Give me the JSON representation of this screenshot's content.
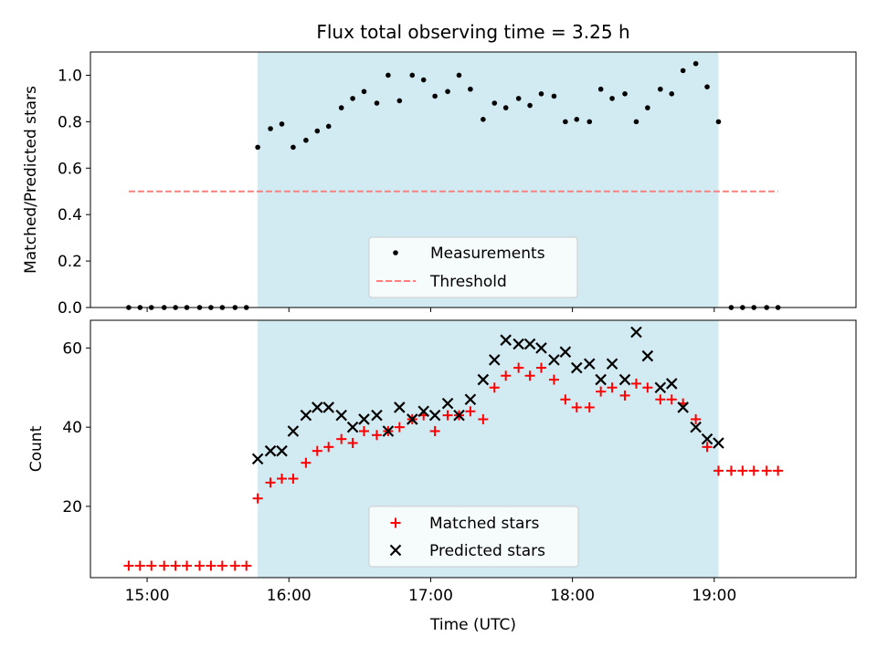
{
  "chart_data": [
    {
      "type": "scatter",
      "title": "Flux total observing time = 3.25 h",
      "xlabel": "",
      "ylabel": "Matched/Predicted stars",
      "ylim": [
        0,
        1.1
      ],
      "yticks": [
        "0.0",
        "0.2",
        "0.4",
        "0.6",
        "0.8",
        "1.0"
      ],
      "ytick_values": [
        0,
        0.2,
        0.4,
        0.6,
        0.8,
        1.0
      ],
      "x_unit": "hours UTC",
      "xlim": [
        14.6,
        20.0
      ],
      "highlight_span": [
        15.78,
        19.03
      ],
      "highlight_color": "#add8e6",
      "legend_position": "lower center",
      "series": [
        {
          "name": "Measurements",
          "kind": "points",
          "color": "#000000",
          "x": [
            14.87,
            14.95,
            15.03,
            15.12,
            15.2,
            15.28,
            15.37,
            15.45,
            15.53,
            15.62,
            15.7,
            15.78,
            15.87,
            15.95,
            16.03,
            16.12,
            16.2,
            16.28,
            16.37,
            16.45,
            16.53,
            16.62,
            16.7,
            16.78,
            16.87,
            16.95,
            17.03,
            17.12,
            17.2,
            17.28,
            17.37,
            17.45,
            17.53,
            17.62,
            17.7,
            17.78,
            17.87,
            17.95,
            18.03,
            18.12,
            18.2,
            18.28,
            18.37,
            18.45,
            18.53,
            18.62,
            18.7,
            18.78,
            18.87,
            18.95,
            19.03,
            19.12,
            19.2,
            19.28,
            19.37,
            19.45
          ],
          "y": [
            0,
            0,
            0,
            0,
            0,
            0,
            0,
            0,
            0,
            0,
            0,
            0.69,
            0.77,
            0.79,
            0.69,
            0.72,
            0.76,
            0.78,
            0.86,
            0.9,
            0.93,
            0.88,
            1.0,
            0.89,
            1.0,
            0.98,
            0.91,
            0.93,
            1.0,
            0.94,
            0.81,
            0.88,
            0.86,
            0.9,
            0.87,
            0.92,
            0.91,
            0.8,
            0.81,
            0.8,
            0.94,
            0.9,
            0.92,
            0.8,
            0.86,
            0.94,
            0.92,
            1.02,
            1.05,
            0.95,
            0.8,
            0,
            0,
            0,
            0,
            0
          ]
        },
        {
          "name": "Threshold",
          "kind": "dashed-line",
          "color": "#ff7f7f",
          "x": [
            14.87,
            19.45
          ],
          "y": [
            0.5,
            0.5
          ]
        }
      ]
    },
    {
      "type": "scatter",
      "title": "",
      "xlabel": "Time (UTC)",
      "ylabel": "Count",
      "ylim": [
        2,
        67
      ],
      "yticks": [
        "20",
        "40",
        "60"
      ],
      "ytick_values": [
        20,
        40,
        60
      ],
      "xticks": [
        "15:00",
        "16:00",
        "17:00",
        "18:00",
        "19:00"
      ],
      "xtick_values": [
        15,
        16,
        17,
        18,
        19
      ],
      "x_unit": "hours UTC",
      "xlim": [
        14.6,
        20.0
      ],
      "highlight_span": [
        15.78,
        19.03
      ],
      "highlight_color": "#add8e6",
      "legend_position": "lower center",
      "series": [
        {
          "name": "Matched stars",
          "kind": "plus",
          "color": "#ff0000",
          "x": [
            14.87,
            14.95,
            15.03,
            15.12,
            15.2,
            15.28,
            15.37,
            15.45,
            15.53,
            15.62,
            15.7,
            15.78,
            15.87,
            15.95,
            16.03,
            16.12,
            16.2,
            16.28,
            16.37,
            16.45,
            16.53,
            16.62,
            16.7,
            16.78,
            16.87,
            16.95,
            17.03,
            17.12,
            17.2,
            17.28,
            17.37,
            17.45,
            17.53,
            17.62,
            17.7,
            17.78,
            17.87,
            17.95,
            18.03,
            18.12,
            18.2,
            18.28,
            18.37,
            18.45,
            18.53,
            18.62,
            18.7,
            18.78,
            18.87,
            18.95,
            19.03,
            19.12,
            19.2,
            19.28,
            19.37,
            19.45
          ],
          "y": [
            5,
            5,
            5,
            5,
            5,
            5,
            5,
            5,
            5,
            5,
            5,
            22,
            26,
            27,
            27,
            31,
            34,
            35,
            37,
            36,
            39,
            38,
            39,
            40,
            42,
            43,
            39,
            43,
            43,
            44,
            42,
            50,
            53,
            55,
            53,
            55,
            52,
            47,
            45,
            45,
            49,
            50,
            48,
            51,
            50,
            47,
            47,
            46,
            42,
            35,
            29,
            29,
            29,
            29,
            29,
            29
          ]
        },
        {
          "name": "Predicted stars",
          "kind": "x",
          "color": "#000000",
          "x": [
            15.78,
            15.87,
            15.95,
            16.03,
            16.12,
            16.2,
            16.28,
            16.37,
            16.45,
            16.53,
            16.62,
            16.7,
            16.78,
            16.87,
            16.95,
            17.03,
            17.12,
            17.2,
            17.28,
            17.37,
            17.45,
            17.53,
            17.62,
            17.7,
            17.78,
            17.87,
            17.95,
            18.03,
            18.12,
            18.2,
            18.28,
            18.37,
            18.45,
            18.53,
            18.62,
            18.7,
            18.78,
            18.87,
            18.95,
            19.03
          ],
          "y": [
            32,
            34,
            34,
            39,
            43,
            45,
            45,
            43,
            40,
            42,
            43,
            39,
            45,
            42,
            44,
            43,
            46,
            43,
            47,
            52,
            57,
            62,
            61,
            61,
            60,
            57,
            59,
            55,
            56,
            52,
            56,
            52,
            64,
            58,
            50,
            51,
            45,
            40,
            37,
            36
          ]
        }
      ]
    }
  ]
}
